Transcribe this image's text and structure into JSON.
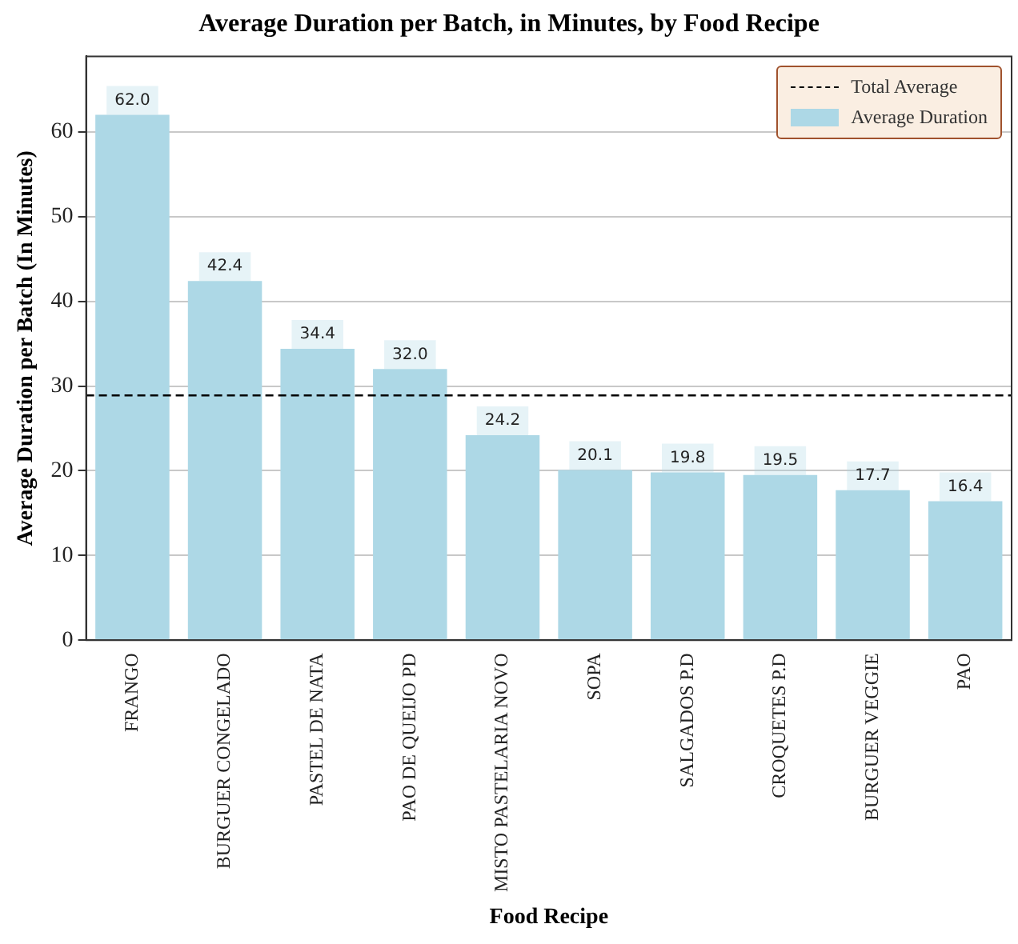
{
  "chart_data": {
    "type": "bar",
    "title": "Average Duration per Batch, in Minutes, by Food Recipe",
    "xlabel": "Food Recipe",
    "ylabel": "Average Duration per Batch (In Minutes)",
    "categories": [
      "FRANGO",
      "BURGUER CONGELADO",
      "PASTEL DE NATA",
      "PAO DE QUEIJO PD",
      "MISTO PASTELARIA NOVO",
      "SOPA",
      "SALGADOS P.D",
      "CROQUETES P.D",
      "BURGUER VEGGIE",
      "PAO"
    ],
    "series": [
      {
        "name": "Average Duration",
        "color": "#add8e6",
        "values": [
          62.0,
          42.4,
          34.4,
          32.0,
          24.2,
          20.1,
          19.8,
          19.5,
          17.7,
          16.4
        ],
        "value_labels": [
          "62.0",
          "42.4",
          "34.4",
          "32.0",
          "24.2",
          "20.1",
          "19.8",
          "19.5",
          "17.7",
          "16.4"
        ]
      }
    ],
    "ylim": [
      0,
      68.9
    ],
    "yticks": [
      0,
      10,
      20,
      30,
      40,
      50,
      60
    ],
    "ref_lines": [
      {
        "axis": "y",
        "value": 28.9,
        "label": "Total Average",
        "color": "#000000",
        "line_style": "dashed"
      }
    ],
    "grid": "y",
    "legend": "top right"
  }
}
